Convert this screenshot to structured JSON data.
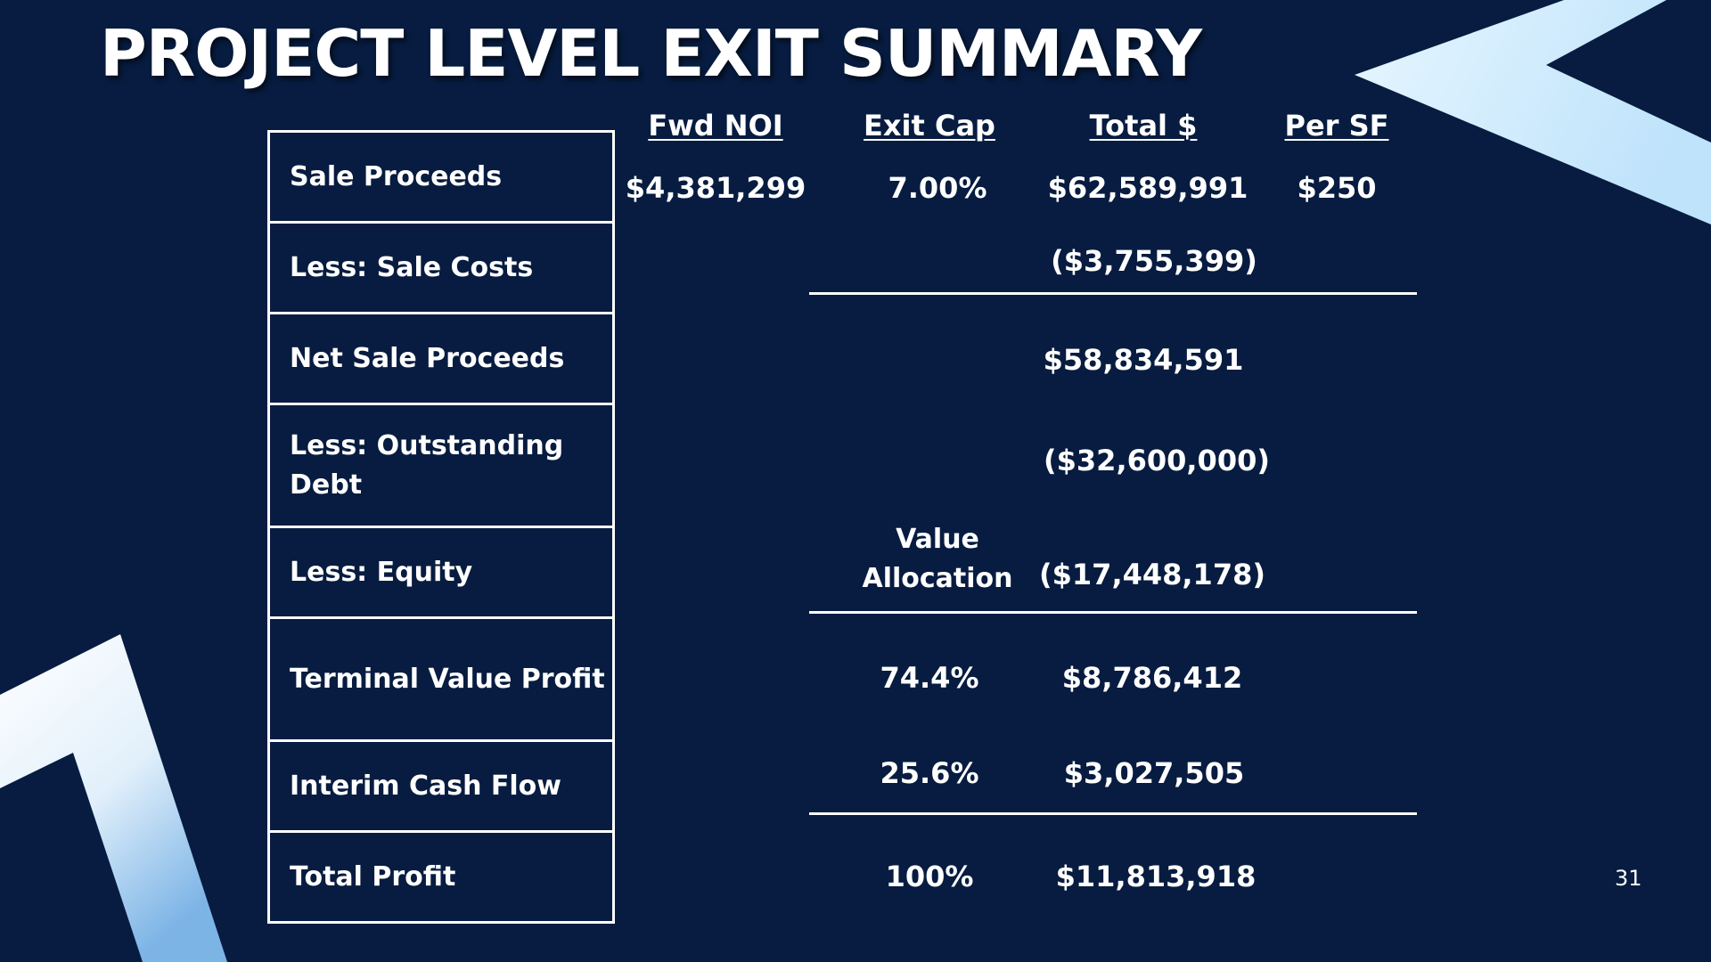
{
  "slide": {
    "title": "PROJECT LEVEL EXIT SUMMARY",
    "page_number": "31"
  },
  "headers": {
    "fwd_noi": "Fwd NOI",
    "exit_cap": "Exit Cap",
    "total": "Total $",
    "per_sf": "Per SF"
  },
  "rows": [
    {
      "label": "Sale Proceeds",
      "fwd_noi": "$4,381,299",
      "exit_cap": "7.00%",
      "total": "$62,589,991",
      "per_sf": "$250"
    },
    {
      "label": "Less: Sale Costs",
      "total": "($3,755,399)"
    },
    {
      "label": "Net Sale Proceeds",
      "total": "$58,834,591"
    },
    {
      "label": "Less: Outstanding Debt",
      "total": "($32,600,000)"
    },
    {
      "label": "Less: Equity",
      "total": "($17,448,178)"
    },
    {
      "label": "Terminal Value Profit",
      "allocation": "74.4%",
      "total": "$8,786,412"
    },
    {
      "label": "Interim Cash Flow",
      "allocation": "25.6%",
      "total": "$3,027,505"
    },
    {
      "label": "Total Profit",
      "allocation": "100%",
      "total": "$11,813,918"
    }
  ],
  "value_allocation_label": "Value Allocation",
  "colors": {
    "background": "#071c40",
    "text": "#ffffff",
    "accent_light": "#cfeeff",
    "accent_blue": "#7fb8e8"
  }
}
